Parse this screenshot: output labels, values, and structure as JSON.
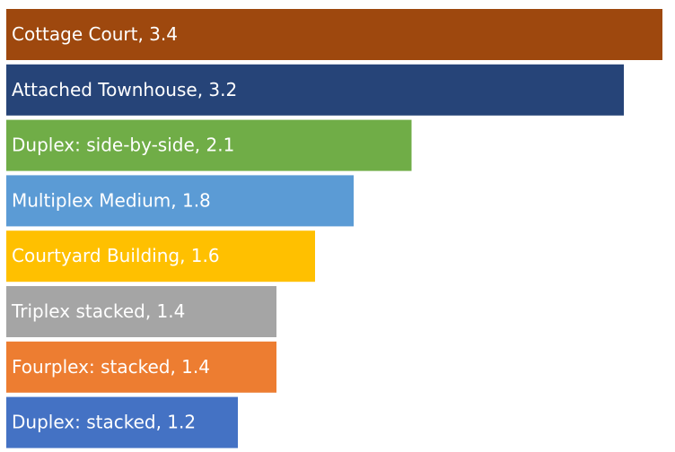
{
  "chart_data": {
    "type": "bar",
    "orientation": "horizontal",
    "values": [
      3.4,
      3.2,
      2.1,
      1.8,
      1.6,
      1.4,
      1.4,
      1.2
    ],
    "value_labels": [
      "Cottage Court, 3.4",
      "Attached Townhouse, 3.2",
      "Duplex: side-by-side, 2.1",
      "Multiplex Medium, 1.8",
      "Courtyard Building, 1.6",
      "Triplex stacked, 1.4",
      "Fourplex: stacked, 1.4",
      "Duplex: stacked, 1.2"
    ],
    "colors": [
      "#9e480e",
      "#264478",
      "#70ad47",
      "#5b9bd5",
      "#ffc000",
      "#a5a5a5",
      "#ed7d31",
      "#4472c4"
    ],
    "xlim": [
      0,
      3.4
    ]
  }
}
